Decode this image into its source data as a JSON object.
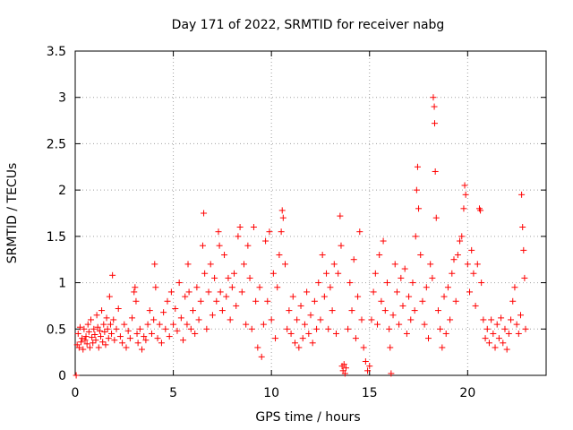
{
  "chart_data": {
    "type": "scatter",
    "title": "Day 171 of 2022, SRMTID for receiver nabg",
    "xlabel": "GPS time / hours",
    "ylabel": "SRMTID / TECUs",
    "xlim": [
      0,
      24
    ],
    "ylim": [
      0,
      3.5
    ],
    "x_ticks": [
      0,
      5,
      10,
      15,
      20
    ],
    "x_tick_labels": [
      "0",
      "5",
      "10",
      "15",
      "20"
    ],
    "y_ticks": [
      0,
      0.5,
      1,
      1.5,
      2,
      2.5,
      3,
      3.5
    ],
    "y_tick_labels": [
      "0",
      "0.5",
      "1",
      "1.5",
      "2",
      "2.5",
      "3",
      "3.5"
    ],
    "grid": true,
    "marker": "+",
    "series": [
      {
        "name": "SRMTID",
        "color": "#ff0000",
        "points": [
          [
            0.05,
            0.0
          ],
          [
            0.1,
            0.33
          ],
          [
            0.15,
            0.45
          ],
          [
            0.2,
            0.3
          ],
          [
            0.25,
            0.52
          ],
          [
            0.3,
            0.36
          ],
          [
            0.35,
            0.4
          ],
          [
            0.4,
            0.28
          ],
          [
            0.45,
            0.5
          ],
          [
            0.5,
            0.38
          ],
          [
            0.55,
            0.42
          ],
          [
            0.6,
            0.34
          ],
          [
            0.65,
            0.55
          ],
          [
            0.7,
            0.47
          ],
          [
            0.75,
            0.3
          ],
          [
            0.8,
            0.6
          ],
          [
            0.85,
            0.41
          ],
          [
            0.9,
            0.35
          ],
          [
            0.95,
            0.5
          ],
          [
            1.0,
            0.44
          ],
          [
            1.05,
            0.38
          ],
          [
            1.1,
            0.65
          ],
          [
            1.15,
            0.52
          ],
          [
            1.2,
            0.3
          ],
          [
            1.25,
            0.48
          ],
          [
            1.3,
            0.42
          ],
          [
            1.35,
            0.7
          ],
          [
            1.4,
            0.36
          ],
          [
            1.45,
            0.55
          ],
          [
            1.5,
            0.47
          ],
          [
            1.55,
            0.33
          ],
          [
            1.6,
            0.62
          ],
          [
            1.65,
            0.5
          ],
          [
            1.7,
            0.4
          ],
          [
            1.75,
            0.85
          ],
          [
            1.8,
            0.55
          ],
          [
            1.85,
            0.45
          ],
          [
            1.9,
            1.08
          ],
          [
            1.95,
            0.6
          ],
          [
            2.0,
            0.38
          ],
          [
            2.1,
            0.5
          ],
          [
            2.2,
            0.72
          ],
          [
            2.3,
            0.42
          ],
          [
            2.4,
            0.35
          ],
          [
            2.5,
            0.55
          ],
          [
            2.6,
            0.3
          ],
          [
            2.7,
            0.48
          ],
          [
            2.8,
            0.4
          ],
          [
            2.9,
            0.62
          ],
          [
            3.0,
            0.9
          ],
          [
            3.05,
            0.95
          ],
          [
            3.1,
            0.8
          ],
          [
            3.15,
            0.45
          ],
          [
            3.2,
            0.35
          ],
          [
            3.3,
            0.5
          ],
          [
            3.4,
            0.28
          ],
          [
            3.5,
            0.42
          ],
          [
            3.6,
            0.38
          ],
          [
            3.7,
            0.55
          ],
          [
            3.8,
            0.7
          ],
          [
            3.9,
            0.45
          ],
          [
            4.0,
            0.6
          ],
          [
            4.05,
            1.2
          ],
          [
            4.1,
            0.95
          ],
          [
            4.2,
            0.4
          ],
          [
            4.3,
            0.55
          ],
          [
            4.4,
            0.35
          ],
          [
            4.5,
            0.68
          ],
          [
            4.6,
            0.5
          ],
          [
            4.7,
            0.8
          ],
          [
            4.8,
            0.42
          ],
          [
            4.9,
            0.9
          ],
          [
            5.0,
            0.55
          ],
          [
            5.1,
            0.72
          ],
          [
            5.2,
            0.48
          ],
          [
            5.3,
            1.0
          ],
          [
            5.4,
            0.62
          ],
          [
            5.5,
            0.38
          ],
          [
            5.6,
            0.85
          ],
          [
            5.7,
            0.55
          ],
          [
            5.75,
            1.2
          ],
          [
            5.8,
            0.9
          ],
          [
            5.9,
            0.5
          ],
          [
            6.0,
            0.7
          ],
          [
            6.1,
            0.45
          ],
          [
            6.2,
            0.95
          ],
          [
            6.3,
            0.6
          ],
          [
            6.4,
            0.8
          ],
          [
            6.5,
            1.4
          ],
          [
            6.55,
            1.75
          ],
          [
            6.6,
            1.1
          ],
          [
            6.7,
            0.5
          ],
          [
            6.8,
            0.9
          ],
          [
            6.9,
            1.2
          ],
          [
            7.0,
            0.65
          ],
          [
            7.1,
            1.05
          ],
          [
            7.2,
            0.8
          ],
          [
            7.3,
            1.55
          ],
          [
            7.35,
            1.4
          ],
          [
            7.4,
            0.9
          ],
          [
            7.5,
            0.7
          ],
          [
            7.6,
            1.3
          ],
          [
            7.7,
            0.85
          ],
          [
            7.8,
            1.05
          ],
          [
            7.9,
            0.6
          ],
          [
            8.0,
            0.95
          ],
          [
            8.1,
            1.1
          ],
          [
            8.2,
            0.75
          ],
          [
            8.3,
            1.5
          ],
          [
            8.4,
            1.6
          ],
          [
            8.5,
            0.9
          ],
          [
            8.6,
            1.2
          ],
          [
            8.7,
            0.55
          ],
          [
            8.8,
            1.4
          ],
          [
            8.9,
            1.05
          ],
          [
            9.0,
            0.5
          ],
          [
            9.1,
            1.6
          ],
          [
            9.2,
            0.8
          ],
          [
            9.3,
            0.3
          ],
          [
            9.4,
            0.95
          ],
          [
            9.5,
            0.2
          ],
          [
            9.6,
            0.55
          ],
          [
            9.7,
            1.45
          ],
          [
            9.8,
            0.8
          ],
          [
            9.9,
            1.55
          ],
          [
            10.0,
            0.6
          ],
          [
            10.1,
            1.1
          ],
          [
            10.2,
            0.4
          ],
          [
            10.3,
            0.95
          ],
          [
            10.4,
            1.3
          ],
          [
            10.5,
            1.55
          ],
          [
            10.55,
            1.78
          ],
          [
            10.6,
            1.7
          ],
          [
            10.7,
            1.2
          ],
          [
            10.8,
            0.5
          ],
          [
            10.9,
            0.7
          ],
          [
            11.0,
            0.45
          ],
          [
            11.1,
            0.85
          ],
          [
            11.2,
            0.35
          ],
          [
            11.3,
            0.6
          ],
          [
            11.4,
            0.3
          ],
          [
            11.5,
            0.75
          ],
          [
            11.6,
            0.4
          ],
          [
            11.7,
            0.55
          ],
          [
            11.8,
            0.9
          ],
          [
            11.9,
            0.45
          ],
          [
            12.0,
            0.65
          ],
          [
            12.1,
            0.35
          ],
          [
            12.2,
            0.8
          ],
          [
            12.3,
            0.5
          ],
          [
            12.4,
            1.0
          ],
          [
            12.5,
            0.6
          ],
          [
            12.6,
            1.3
          ],
          [
            12.7,
            0.85
          ],
          [
            12.8,
            1.1
          ],
          [
            12.9,
            0.5
          ],
          [
            13.0,
            0.95
          ],
          [
            13.1,
            0.7
          ],
          [
            13.2,
            1.2
          ],
          [
            13.3,
            0.45
          ],
          [
            13.4,
            1.1
          ],
          [
            13.5,
            1.72
          ],
          [
            13.55,
            1.4
          ],
          [
            13.6,
            0.1
          ],
          [
            13.65,
            0.05
          ],
          [
            13.7,
            0.12
          ],
          [
            13.75,
            0.02
          ],
          [
            13.8,
            0.08
          ],
          [
            13.9,
            0.5
          ],
          [
            14.0,
            1.0
          ],
          [
            14.1,
            0.7
          ],
          [
            14.2,
            1.25
          ],
          [
            14.3,
            0.4
          ],
          [
            14.4,
            0.85
          ],
          [
            14.5,
            1.55
          ],
          [
            14.6,
            0.6
          ],
          [
            14.7,
            0.3
          ],
          [
            14.8,
            0.15
          ],
          [
            14.9,
            0.05
          ],
          [
            15.0,
            0.1
          ],
          [
            15.1,
            0.6
          ],
          [
            15.2,
            0.9
          ],
          [
            15.3,
            1.1
          ],
          [
            15.4,
            0.55
          ],
          [
            15.5,
            1.3
          ],
          [
            15.6,
            0.8
          ],
          [
            15.7,
            1.45
          ],
          [
            15.8,
            0.7
          ],
          [
            15.9,
            1.0
          ],
          [
            16.0,
            0.5
          ],
          [
            16.05,
            0.3
          ],
          [
            16.1,
            0.02
          ],
          [
            16.2,
            0.65
          ],
          [
            16.3,
            1.2
          ],
          [
            16.4,
            0.9
          ],
          [
            16.5,
            0.55
          ],
          [
            16.6,
            1.05
          ],
          [
            16.7,
            0.75
          ],
          [
            16.8,
            1.15
          ],
          [
            16.9,
            0.45
          ],
          [
            17.0,
            0.85
          ],
          [
            17.1,
            0.6
          ],
          [
            17.2,
            1.0
          ],
          [
            17.3,
            0.7
          ],
          [
            17.35,
            1.5
          ],
          [
            17.4,
            2.0
          ],
          [
            17.45,
            2.25
          ],
          [
            17.5,
            1.8
          ],
          [
            17.6,
            1.3
          ],
          [
            17.7,
            0.8
          ],
          [
            17.8,
            0.55
          ],
          [
            17.9,
            0.95
          ],
          [
            18.0,
            0.4
          ],
          [
            18.1,
            1.2
          ],
          [
            18.2,
            1.05
          ],
          [
            18.25,
            3.0
          ],
          [
            18.3,
            2.9
          ],
          [
            18.32,
            2.72
          ],
          [
            18.35,
            2.2
          ],
          [
            18.4,
            1.7
          ],
          [
            18.5,
            0.7
          ],
          [
            18.6,
            0.5
          ],
          [
            18.7,
            0.3
          ],
          [
            18.8,
            0.85
          ],
          [
            18.9,
            0.45
          ],
          [
            19.0,
            0.95
          ],
          [
            19.1,
            0.6
          ],
          [
            19.2,
            1.1
          ],
          [
            19.3,
            1.25
          ],
          [
            19.4,
            0.8
          ],
          [
            19.5,
            1.3
          ],
          [
            19.6,
            1.45
          ],
          [
            19.7,
            1.5
          ],
          [
            19.8,
            1.8
          ],
          [
            19.85,
            2.05
          ],
          [
            19.9,
            1.95
          ],
          [
            20.0,
            1.2
          ],
          [
            20.1,
            0.9
          ],
          [
            20.2,
            1.35
          ],
          [
            20.3,
            1.1
          ],
          [
            20.4,
            0.75
          ],
          [
            20.5,
            1.2
          ],
          [
            20.6,
            1.8
          ],
          [
            20.65,
            1.78
          ],
          [
            20.7,
            1.0
          ],
          [
            20.8,
            0.6
          ],
          [
            20.9,
            0.4
          ],
          [
            21.0,
            0.5
          ],
          [
            21.1,
            0.35
          ],
          [
            21.2,
            0.6
          ],
          [
            21.3,
            0.45
          ],
          [
            21.4,
            0.3
          ],
          [
            21.5,
            0.55
          ],
          [
            21.6,
            0.4
          ],
          [
            21.7,
            0.62
          ],
          [
            21.8,
            0.35
          ],
          [
            21.9,
            0.5
          ],
          [
            22.0,
            0.28
          ],
          [
            22.1,
            0.45
          ],
          [
            22.2,
            0.6
          ],
          [
            22.3,
            0.8
          ],
          [
            22.4,
            0.95
          ],
          [
            22.5,
            0.55
          ],
          [
            22.6,
            0.45
          ],
          [
            22.7,
            0.65
          ],
          [
            22.75,
            1.95
          ],
          [
            22.8,
            1.6
          ],
          [
            22.85,
            1.35
          ],
          [
            22.9,
            1.05
          ],
          [
            22.95,
            0.5
          ]
        ]
      }
    ]
  }
}
